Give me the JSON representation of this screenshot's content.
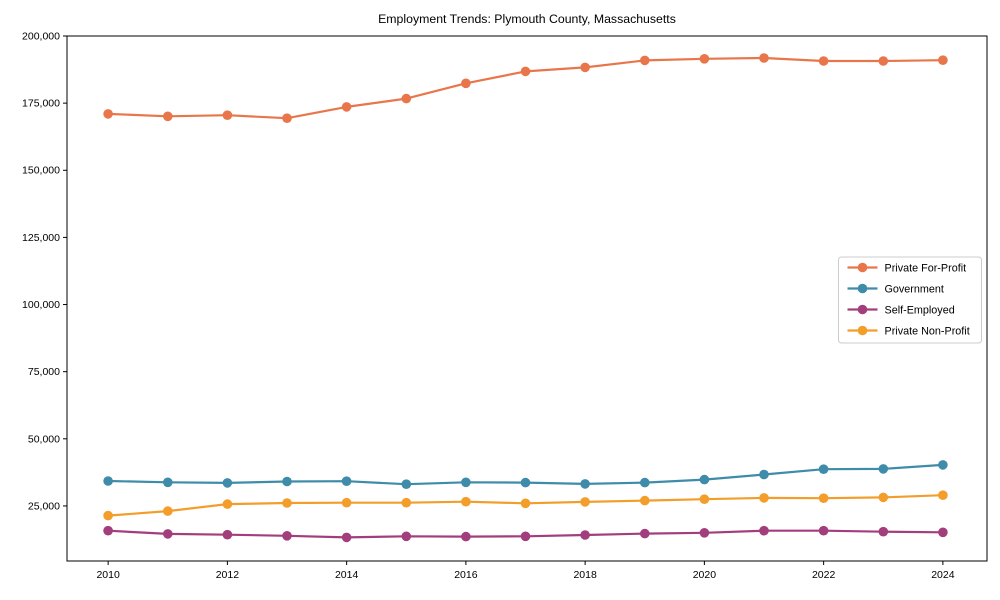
{
  "title": "Employment Trends: Plymouth County, Massachusetts",
  "chart_data": {
    "type": "line",
    "title": "Employment Trends: Plymouth County, Massachusetts",
    "xlabel": "",
    "ylabel": "",
    "grid": false,
    "legend_position": "right-middle",
    "x": [
      2010,
      2011,
      2012,
      2013,
      2014,
      2015,
      2016,
      2017,
      2018,
      2019,
      2020,
      2021,
      2022,
      2023,
      2024
    ],
    "x_ticks": [
      2010,
      2012,
      2014,
      2016,
      2018,
      2020,
      2022,
      2024
    ],
    "x_tick_labels": [
      "2010",
      "2012",
      "2014",
      "2016",
      "2018",
      "2020",
      "2022",
      "2024"
    ],
    "y_ticks": [
      25000,
      50000,
      75000,
      100000,
      125000,
      150000,
      175000,
      200000
    ],
    "y_tick_labels": [
      "25,000",
      "50,000",
      "75,000",
      "100,000",
      "125,000",
      "150,000",
      "175,000",
      "200,000"
    ],
    "xlim": [
      2009.31,
      2024.74
    ],
    "ylim": [
      4500,
      200000
    ],
    "series": [
      {
        "name": "Private For-Profit",
        "color": "#e8764a",
        "values": [
          171000,
          170100,
          170500,
          169400,
          173600,
          176700,
          182400,
          186800,
          188300,
          190900,
          191500,
          191800,
          190700,
          190700,
          191000
        ]
      },
      {
        "name": "Government",
        "color": "#3e8ca9",
        "values": [
          34300,
          33800,
          33600,
          34100,
          34200,
          33100,
          33800,
          33700,
          33200,
          33700,
          34800,
          36700,
          38700,
          38800,
          40300
        ]
      },
      {
        "name": "Self-Employed",
        "color": "#a33e7d",
        "values": [
          15800,
          14600,
          14300,
          13900,
          13300,
          13700,
          13600,
          13700,
          14200,
          14700,
          15000,
          15800,
          15800,
          15400,
          15200
        ]
      },
      {
        "name": "Private Non-Profit",
        "color": "#f39d2a",
        "values": [
          21400,
          23100,
          25700,
          26100,
          26200,
          26200,
          26600,
          26000,
          26500,
          27000,
          27500,
          28000,
          27900,
          28200,
          29000
        ]
      }
    ]
  }
}
